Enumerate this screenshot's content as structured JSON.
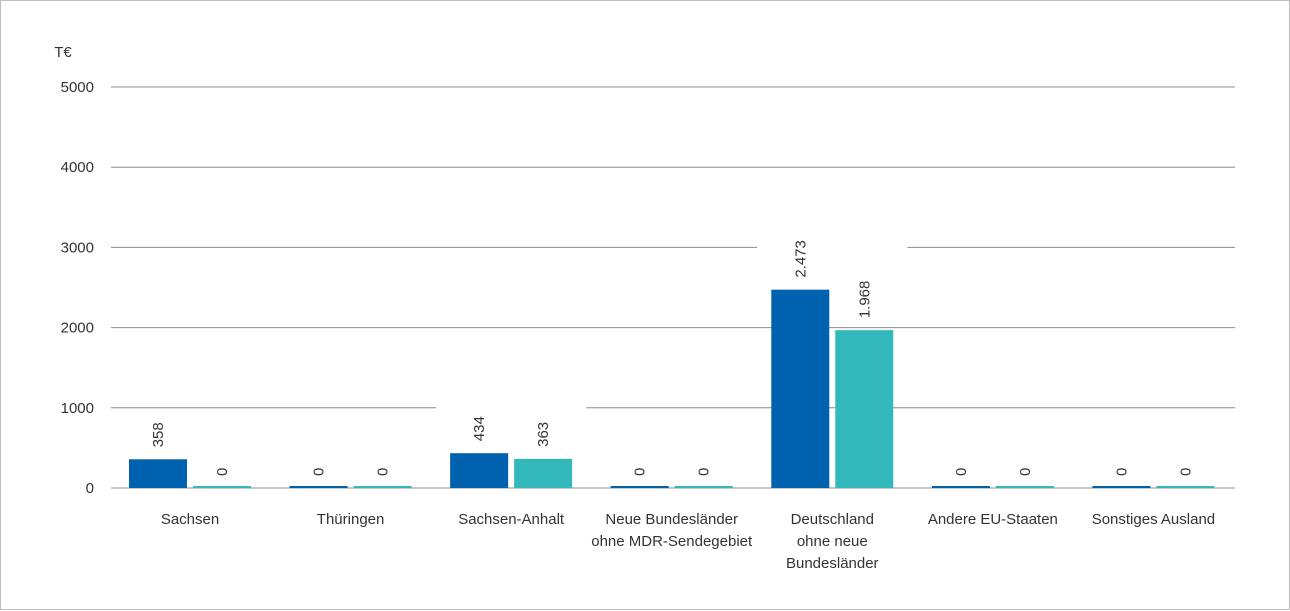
{
  "chart_data": {
    "type": "bar",
    "unit_label": "T€",
    "ylim": [
      0,
      5000
    ],
    "yticks": [
      "0",
      "1000",
      "2000",
      "3000",
      "4000",
      "5000"
    ],
    "grid": true,
    "categories": [
      [
        "Sachsen"
      ],
      [
        "Thüringen"
      ],
      [
        "Sachsen-Anhalt"
      ],
      [
        "Neue Bundesländer",
        "ohne MDR-Sendegebiet"
      ],
      [
        "Deutschland",
        "ohne neue",
        "Bundesländer"
      ],
      [
        "Andere EU-Staaten"
      ],
      [
        "Sonstiges Ausland"
      ]
    ],
    "series": [
      {
        "color": "#0061ae",
        "values": [
          358,
          0,
          434,
          0,
          2473,
          0,
          0
        ],
        "labels": [
          "358",
          "0",
          "434",
          "0",
          "2.473",
          "0",
          "0"
        ]
      },
      {
        "color": "#33b8bc",
        "values": [
          0,
          0,
          363,
          0,
          1968,
          0,
          0
        ],
        "labels": [
          "0",
          "0",
          "363",
          "0",
          "1.968",
          "0",
          "0"
        ]
      }
    ]
  }
}
